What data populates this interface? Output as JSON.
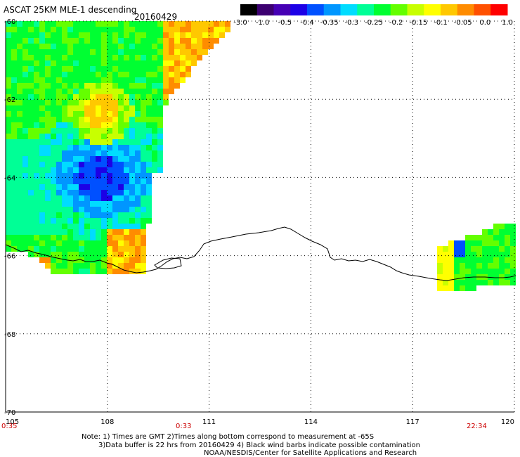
{
  "title": "ASCAT 25KM MLE-1 descending",
  "date": "20160429",
  "colorbar": {
    "labels": [
      "-3.0",
      "-1.0",
      "-0.5",
      "-0.4",
      "-0.35",
      "-0.3",
      "-0.25",
      "-0.2",
      "-0.15",
      "-0.1",
      "-0.05",
      "0.0",
      "1.0"
    ],
    "colors": [
      "#000000",
      "#3c0070",
      "#4600b4",
      "#1c00e6",
      "#0050ff",
      "#0096ff",
      "#00dcff",
      "#00ff96",
      "#00ff32",
      "#64ff00",
      "#c8ff00",
      "#ffff00",
      "#ffc800",
      "#ff8c00",
      "#ff5000",
      "#ff0000"
    ]
  },
  "lat_labels": [
    "-60",
    "-62",
    "-64",
    "-66",
    "-68",
    "-70"
  ],
  "lon_labels": [
    "105",
    "108",
    "111",
    "114",
    "117",
    "120"
  ],
  "time_labels": [
    "0:35",
    "0:33",
    "22:34"
  ],
  "notes": [
    "Note: 1) Times are GMT 2)Times along bottom correspond to measurement at -65S",
    "3)Data buffer is 22 hrs from 20160429 4) Black wind barbs indicate possible contamination",
    "NOAA/NESDIS/Center for Satellite Applications and Research"
  ]
}
